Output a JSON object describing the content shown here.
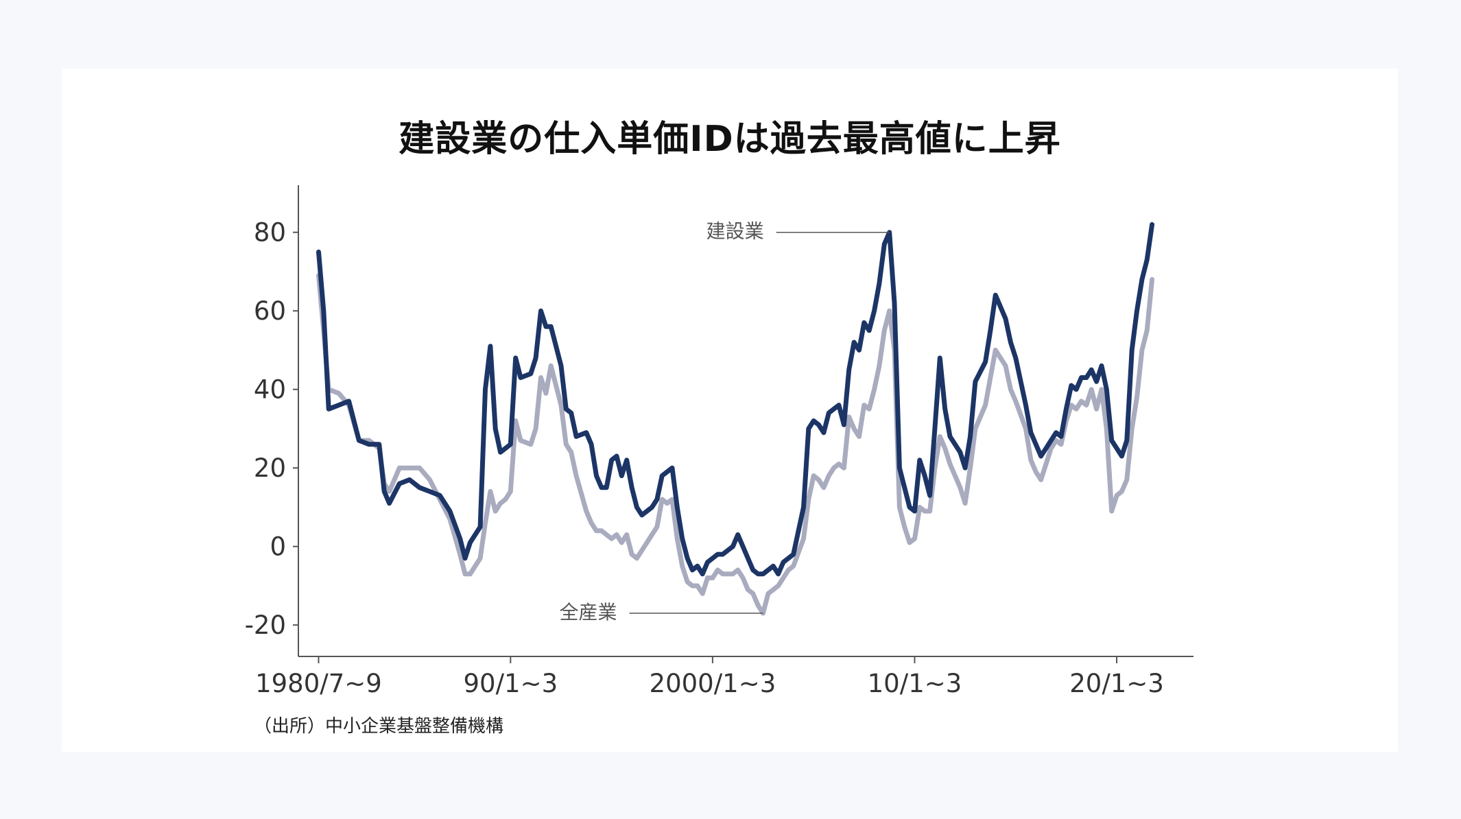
{
  "title": "建設業の仕入単価IDは過去最高値に上昇",
  "source": "（出所）中小企業基盤整備機構",
  "colors": {
    "construction": "#1c3566",
    "all_industry": "#a9abbf",
    "axis": "#555555",
    "background": "#f7f8fc",
    "card": "#ffffff"
  },
  "chart_data": {
    "type": "line",
    "x_ticks": [
      {
        "label": "1980/7~9",
        "t": 1980.5
      },
      {
        "label": "90/1~3",
        "t": 1990.0
      },
      {
        "label": "2000/1~3",
        "t": 2000.0
      },
      {
        "label": "10/1~3",
        "t": 2010.0
      },
      {
        "label": "20/1~3",
        "t": 2020.0
      }
    ],
    "y_ticks": [
      -20,
      0,
      20,
      40,
      60,
      80
    ],
    "xlim": [
      1979.5,
      2023.8
    ],
    "ylim": [
      -28,
      92
    ],
    "series": [
      {
        "name": "建設業",
        "color": "#1c3566",
        "points": [
          [
            1980.5,
            75
          ],
          [
            1980.75,
            60
          ],
          [
            1981.0,
            35
          ],
          [
            1981.5,
            36
          ],
          [
            1982.0,
            37
          ],
          [
            1982.5,
            27
          ],
          [
            1983.0,
            26
          ],
          [
            1983.5,
            26
          ],
          [
            1983.75,
            14
          ],
          [
            1984.0,
            11
          ],
          [
            1984.5,
            16
          ],
          [
            1985.0,
            17
          ],
          [
            1985.5,
            15
          ],
          [
            1986.0,
            14
          ],
          [
            1986.5,
            13
          ],
          [
            1987.0,
            9
          ],
          [
            1987.5,
            2
          ],
          [
            1987.75,
            -3
          ],
          [
            1988.0,
            1
          ],
          [
            1988.5,
            5
          ],
          [
            1988.75,
            40
          ],
          [
            1989.0,
            51
          ],
          [
            1989.25,
            30
          ],
          [
            1989.5,
            24
          ],
          [
            1989.75,
            25
          ],
          [
            1990.0,
            26
          ],
          [
            1990.25,
            48
          ],
          [
            1990.5,
            43
          ],
          [
            1991.0,
            44
          ],
          [
            1991.25,
            48
          ],
          [
            1991.5,
            60
          ],
          [
            1991.75,
            56
          ],
          [
            1992.0,
            56
          ],
          [
            1992.5,
            46
          ],
          [
            1992.75,
            35
          ],
          [
            1993.0,
            34
          ],
          [
            1993.25,
            28
          ],
          [
            1993.75,
            29
          ],
          [
            1994.0,
            26
          ],
          [
            1994.25,
            18
          ],
          [
            1994.5,
            15
          ],
          [
            1994.75,
            15
          ],
          [
            1995.0,
            22
          ],
          [
            1995.25,
            23
          ],
          [
            1995.5,
            18
          ],
          [
            1995.75,
            22
          ],
          [
            1996.0,
            15
          ],
          [
            1996.25,
            10
          ],
          [
            1996.5,
            8
          ],
          [
            1996.75,
            9
          ],
          [
            1997.0,
            10
          ],
          [
            1997.25,
            12
          ],
          [
            1997.5,
            18
          ],
          [
            1997.75,
            19
          ],
          [
            1998.0,
            20
          ],
          [
            1998.25,
            10
          ],
          [
            1998.5,
            2
          ],
          [
            1998.75,
            -3
          ],
          [
            1999.0,
            -6
          ],
          [
            1999.25,
            -5
          ],
          [
            1999.5,
            -7
          ],
          [
            1999.75,
            -4
          ],
          [
            2000.0,
            -3
          ],
          [
            2000.25,
            -2
          ],
          [
            2000.5,
            -2
          ],
          [
            2000.75,
            -1
          ],
          [
            2001.0,
            0
          ],
          [
            2001.25,
            3
          ],
          [
            2001.5,
            0
          ],
          [
            2001.75,
            -3
          ],
          [
            2002.0,
            -6
          ],
          [
            2002.25,
            -7
          ],
          [
            2002.5,
            -7
          ],
          [
            2002.75,
            -6
          ],
          [
            2003.0,
            -5
          ],
          [
            2003.25,
            -7
          ],
          [
            2003.5,
            -4
          ],
          [
            2003.75,
            -3
          ],
          [
            2004.0,
            -2
          ],
          [
            2004.5,
            10
          ],
          [
            2004.75,
            30
          ],
          [
            2005.0,
            32
          ],
          [
            2005.25,
            31
          ],
          [
            2005.5,
            29
          ],
          [
            2005.75,
            34
          ],
          [
            2006.0,
            35
          ],
          [
            2006.25,
            36
          ],
          [
            2006.5,
            31
          ],
          [
            2006.75,
            45
          ],
          [
            2007.0,
            52
          ],
          [
            2007.25,
            50
          ],
          [
            2007.5,
            57
          ],
          [
            2007.75,
            55
          ],
          [
            2008.0,
            60
          ],
          [
            2008.25,
            67
          ],
          [
            2008.5,
            77
          ],
          [
            2008.75,
            80
          ],
          [
            2009.0,
            62
          ],
          [
            2009.25,
            20
          ],
          [
            2009.5,
            15
          ],
          [
            2009.75,
            10
          ],
          [
            2010.0,
            9
          ],
          [
            2010.25,
            22
          ],
          [
            2010.5,
            18
          ],
          [
            2010.75,
            13
          ],
          [
            2011.0,
            30
          ],
          [
            2011.25,
            48
          ],
          [
            2011.5,
            35
          ],
          [
            2011.75,
            28
          ],
          [
            2012.0,
            26
          ],
          [
            2012.25,
            24
          ],
          [
            2012.5,
            20
          ],
          [
            2012.75,
            28
          ],
          [
            2013.0,
            42
          ],
          [
            2013.5,
            47
          ],
          [
            2013.75,
            55
          ],
          [
            2014.0,
            64
          ],
          [
            2014.25,
            61
          ],
          [
            2014.5,
            58
          ],
          [
            2014.75,
            52
          ],
          [
            2015.0,
            48
          ],
          [
            2015.5,
            36
          ],
          [
            2015.75,
            29
          ],
          [
            2016.0,
            26
          ],
          [
            2016.25,
            23
          ],
          [
            2016.5,
            25
          ],
          [
            2016.75,
            27
          ],
          [
            2017.0,
            29
          ],
          [
            2017.25,
            28
          ],
          [
            2017.5,
            35
          ],
          [
            2017.75,
            41
          ],
          [
            2018.0,
            40
          ],
          [
            2018.25,
            43
          ],
          [
            2018.5,
            43
          ],
          [
            2018.75,
            45
          ],
          [
            2019.0,
            42
          ],
          [
            2019.25,
            46
          ],
          [
            2019.5,
            40
          ],
          [
            2019.75,
            27
          ],
          [
            2020.0,
            25
          ],
          [
            2020.25,
            23
          ],
          [
            2020.5,
            27
          ],
          [
            2020.75,
            50
          ],
          [
            2021.0,
            60
          ],
          [
            2021.25,
            68
          ],
          [
            2021.5,
            73
          ],
          [
            2021.75,
            82
          ]
        ]
      },
      {
        "name": "全産業",
        "color": "#a9abbf",
        "points": [
          [
            1980.5,
            69
          ],
          [
            1980.75,
            55
          ],
          [
            1981.0,
            40
          ],
          [
            1981.5,
            39
          ],
          [
            1982.0,
            36
          ],
          [
            1982.5,
            27
          ],
          [
            1983.0,
            27
          ],
          [
            1983.5,
            25
          ],
          [
            1983.75,
            16
          ],
          [
            1984.0,
            14
          ],
          [
            1984.5,
            20
          ],
          [
            1985.0,
            20
          ],
          [
            1985.5,
            20
          ],
          [
            1986.0,
            17
          ],
          [
            1986.5,
            12
          ],
          [
            1987.0,
            7
          ],
          [
            1987.5,
            -2
          ],
          [
            1987.75,
            -7
          ],
          [
            1988.0,
            -7
          ],
          [
            1988.5,
            -3
          ],
          [
            1988.75,
            6
          ],
          [
            1989.0,
            14
          ],
          [
            1989.25,
            9
          ],
          [
            1989.5,
            11
          ],
          [
            1989.75,
            12
          ],
          [
            1990.0,
            14
          ],
          [
            1990.25,
            32
          ],
          [
            1990.5,
            27
          ],
          [
            1991.0,
            26
          ],
          [
            1991.25,
            30
          ],
          [
            1991.5,
            43
          ],
          [
            1991.75,
            39
          ],
          [
            1992.0,
            46
          ],
          [
            1992.5,
            36
          ],
          [
            1992.75,
            26
          ],
          [
            1993.0,
            24
          ],
          [
            1993.25,
            18
          ],
          [
            1993.75,
            9
          ],
          [
            1994.0,
            6
          ],
          [
            1994.25,
            4
          ],
          [
            1994.5,
            4
          ],
          [
            1994.75,
            3
          ],
          [
            1995.0,
            2
          ],
          [
            1995.25,
            3
          ],
          [
            1995.5,
            1
          ],
          [
            1995.75,
            3
          ],
          [
            1996.0,
            -2
          ],
          [
            1996.25,
            -3
          ],
          [
            1996.5,
            -1
          ],
          [
            1996.75,
            1
          ],
          [
            1997.0,
            3
          ],
          [
            1997.25,
            5
          ],
          [
            1997.5,
            12
          ],
          [
            1997.75,
            11
          ],
          [
            1998.0,
            12
          ],
          [
            1998.25,
            2
          ],
          [
            1998.5,
            -5
          ],
          [
            1998.75,
            -9
          ],
          [
            1999.0,
            -10
          ],
          [
            1999.25,
            -10
          ],
          [
            1999.5,
            -12
          ],
          [
            1999.75,
            -8
          ],
          [
            2000.0,
            -8
          ],
          [
            2000.25,
            -6
          ],
          [
            2000.5,
            -7
          ],
          [
            2000.75,
            -7
          ],
          [
            2001.0,
            -7
          ],
          [
            2001.25,
            -6
          ],
          [
            2001.5,
            -8
          ],
          [
            2001.75,
            -11
          ],
          [
            2002.0,
            -12
          ],
          [
            2002.25,
            -15
          ],
          [
            2002.5,
            -17
          ],
          [
            2002.75,
            -12
          ],
          [
            2003.0,
            -11
          ],
          [
            2003.25,
            -10
          ],
          [
            2003.5,
            -8
          ],
          [
            2003.75,
            -6
          ],
          [
            2004.0,
            -5
          ],
          [
            2004.5,
            2
          ],
          [
            2004.75,
            12
          ],
          [
            2005.0,
            18
          ],
          [
            2005.25,
            17
          ],
          [
            2005.5,
            15
          ],
          [
            2005.75,
            18
          ],
          [
            2006.0,
            20
          ],
          [
            2006.25,
            21
          ],
          [
            2006.5,
            20
          ],
          [
            2006.75,
            33
          ],
          [
            2007.0,
            30
          ],
          [
            2007.25,
            28
          ],
          [
            2007.5,
            36
          ],
          [
            2007.75,
            35
          ],
          [
            2008.0,
            40
          ],
          [
            2008.25,
            46
          ],
          [
            2008.5,
            55
          ],
          [
            2008.75,
            60
          ],
          [
            2009.0,
            50
          ],
          [
            2009.25,
            10
          ],
          [
            2009.5,
            5
          ],
          [
            2009.75,
            1
          ],
          [
            2010.0,
            2
          ],
          [
            2010.25,
            10
          ],
          [
            2010.5,
            9
          ],
          [
            2010.75,
            9
          ],
          [
            2011.0,
            20
          ],
          [
            2011.25,
            28
          ],
          [
            2011.5,
            25
          ],
          [
            2011.75,
            21
          ],
          [
            2012.0,
            18
          ],
          [
            2012.25,
            15
          ],
          [
            2012.5,
            11
          ],
          [
            2012.75,
            20
          ],
          [
            2013.0,
            30
          ],
          [
            2013.5,
            36
          ],
          [
            2013.75,
            43
          ],
          [
            2014.0,
            50
          ],
          [
            2014.25,
            48
          ],
          [
            2014.5,
            46
          ],
          [
            2014.75,
            40
          ],
          [
            2015.0,
            37
          ],
          [
            2015.5,
            30
          ],
          [
            2015.75,
            22
          ],
          [
            2016.0,
            19
          ],
          [
            2016.25,
            17
          ],
          [
            2016.5,
            21
          ],
          [
            2016.75,
            25
          ],
          [
            2017.0,
            27
          ],
          [
            2017.25,
            26
          ],
          [
            2017.5,
            32
          ],
          [
            2017.75,
            36
          ],
          [
            2018.0,
            35
          ],
          [
            2018.25,
            37
          ],
          [
            2018.5,
            36
          ],
          [
            2018.75,
            40
          ],
          [
            2019.0,
            35
          ],
          [
            2019.25,
            40
          ],
          [
            2019.5,
            30
          ],
          [
            2019.75,
            9
          ],
          [
            2020.0,
            13
          ],
          [
            2020.25,
            14
          ],
          [
            2020.5,
            17
          ],
          [
            2020.75,
            30
          ],
          [
            2021.0,
            38
          ],
          [
            2021.25,
            50
          ],
          [
            2021.5,
            55
          ],
          [
            2021.75,
            68
          ]
        ]
      }
    ],
    "annotations": [
      {
        "text": "建設業",
        "series": "建設業",
        "t": 2008.75,
        "v": 80
      },
      {
        "text": "全産業",
        "series": "全産業",
        "t": 2002.5,
        "v": -17
      }
    ]
  }
}
